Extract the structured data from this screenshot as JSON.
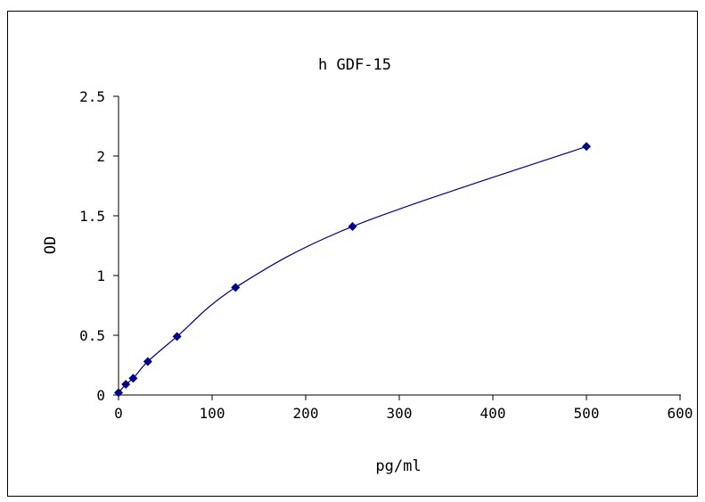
{
  "chart_data": {
    "type": "scatter",
    "title": "h GDF-15",
    "xlabel": "pg/ml",
    "ylabel": "OD",
    "xlim": [
      0,
      600
    ],
    "ylim": [
      0,
      2.5
    ],
    "xticks": [
      "0",
      "100",
      "200",
      "300",
      "400",
      "500",
      "600"
    ],
    "yticks": [
      "0",
      "0.5",
      "1",
      "1.5",
      "2",
      "2.5"
    ],
    "grid": false,
    "legend": "none",
    "series": [
      {
        "x": [
          0,
          7.8,
          15.6,
          31.25,
          62.5,
          125,
          250,
          500
        ],
        "y": [
          0.02,
          0.09,
          0.14,
          0.28,
          0.49,
          0.9,
          1.41,
          2.08
        ],
        "smoothed": true
      }
    ],
    "colors": {
      "series": "#00008B",
      "axes": "#000000"
    }
  }
}
